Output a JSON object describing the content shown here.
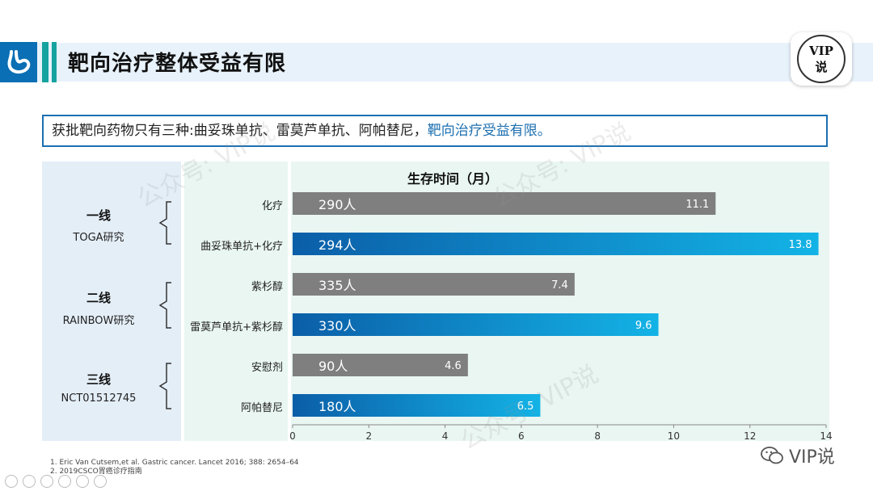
{
  "header": {
    "title": "靶向治疗整体受益有限",
    "badge_line1": "VIP",
    "badge_line2": "说"
  },
  "summary": {
    "text": "获批靶向药物只有三种:曲妥珠单抗、雷莫芦单抗、阿帕替尼，",
    "highlight": "靶向治疗受益有限。"
  },
  "lines": [
    {
      "name": "一线",
      "study": "TOGA研究"
    },
    {
      "name": "二线",
      "study": "RAINBOW研究"
    },
    {
      "name": "三线",
      "study": "NCT01512745"
    }
  ],
  "chart_data": {
    "type": "bar",
    "orientation": "horizontal",
    "title": "生存时间（月）",
    "categories": [
      "化疗",
      "曲妥珠单抗+化疗",
      "紫杉醇",
      "雷莫芦单抗+紫杉醇",
      "安慰剂",
      "阿帕替尼"
    ],
    "values": [
      11.1,
      13.8,
      7.4,
      9.6,
      4.6,
      6.5
    ],
    "value_labels": [
      "11.1",
      "13.8",
      "7.4",
      "9.6",
      "4.6",
      "6.5"
    ],
    "sample_sizes": [
      "290人",
      "294人",
      "335人",
      "330人",
      "90人",
      "180人"
    ],
    "bar_styles": [
      "control",
      "targeted",
      "control",
      "targeted",
      "control",
      "targeted"
    ],
    "xlim": [
      0,
      14
    ],
    "xticks": [
      "0",
      "2",
      "4",
      "6",
      "8",
      "10",
      "12",
      "14"
    ],
    "xlabel": "",
    "ylabel": "",
    "colors": {
      "control": "#7f7f7f",
      "targeted_start": "#0b5ea8",
      "targeted_end": "#13b3e6"
    }
  },
  "references": [
    "1. Eric Van Cutsem,et al. Gastric cancer. Lancet 2016; 388: 2654–64",
    "2. 2019CSCO胃癌诊疗指南"
  ],
  "footer": {
    "wechat_label": "VIP说"
  },
  "watermarks": [
    "公众号: VIP说",
    "公众号: VIP说",
    "公众号: VIP说"
  ]
}
